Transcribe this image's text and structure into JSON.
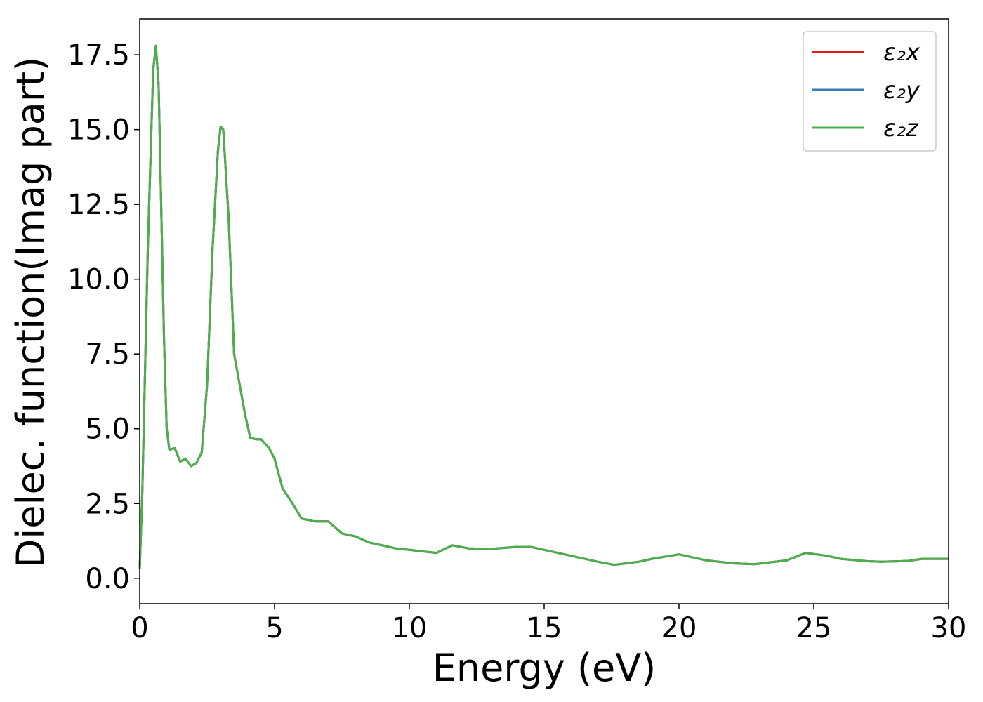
{
  "chart_data": {
    "type": "line",
    "xlabel": "Energy (eV)",
    "ylabel": "Dielec. function(Imag part)",
    "x": [
      0,
      0.1,
      0.3,
      0.5,
      0.6,
      0.7,
      0.9,
      1.0,
      1.1,
      1.3,
      1.5,
      1.7,
      1.9,
      2.1,
      2.3,
      2.5,
      2.7,
      2.9,
      3.0,
      3.1,
      3.3,
      3.5,
      3.7,
      3.9,
      4.1,
      4.3,
      4.5,
      4.8,
      5.0,
      5.3,
      5.6,
      6.0,
      6.5,
      7.0,
      7.5,
      8.0,
      8.5,
      9.0,
      9.5,
      10,
      11,
      11.6,
      12.2,
      13,
      14,
      14.5,
      15,
      16,
      17,
      17.6,
      18.5,
      19,
      20,
      21,
      22,
      22.8,
      24,
      24.7,
      25.5,
      26,
      27,
      27.5,
      28.5,
      29,
      30
    ],
    "series": [
      {
        "name": "ε₂x",
        "color": "#e41a1c",
        "values": [
          0.3,
          3,
          11,
          17,
          17.8,
          16.5,
          8,
          5,
          4.3,
          4.35,
          3.9,
          4.0,
          3.75,
          3.85,
          4.2,
          6.5,
          11,
          14.3,
          15.1,
          15.0,
          12,
          7.5,
          6.5,
          5.5,
          4.7,
          4.65,
          4.65,
          4.35,
          4.0,
          3.0,
          2.6,
          2.0,
          1.9,
          1.9,
          1.5,
          1.4,
          1.2,
          1.1,
          1.0,
          0.95,
          0.85,
          1.1,
          1.0,
          0.98,
          1.05,
          1.05,
          0.95,
          0.75,
          0.55,
          0.45,
          0.55,
          0.65,
          0.8,
          0.6,
          0.5,
          0.47,
          0.6,
          0.85,
          0.75,
          0.65,
          0.57,
          0.55,
          0.58,
          0.65,
          0.65
        ]
      },
      {
        "name": "ε₂y",
        "color": "#377eb8",
        "values": [
          0.3,
          3,
          11,
          17,
          17.8,
          16.5,
          8,
          5,
          4.3,
          4.35,
          3.9,
          4.0,
          3.75,
          3.85,
          4.2,
          6.5,
          11,
          14.3,
          15.1,
          15.0,
          12,
          7.5,
          6.5,
          5.5,
          4.7,
          4.65,
          4.65,
          4.35,
          4.0,
          3.0,
          2.6,
          2.0,
          1.9,
          1.9,
          1.5,
          1.4,
          1.2,
          1.1,
          1.0,
          0.95,
          0.85,
          1.1,
          1.0,
          0.98,
          1.05,
          1.05,
          0.95,
          0.75,
          0.55,
          0.45,
          0.55,
          0.65,
          0.8,
          0.6,
          0.5,
          0.47,
          0.6,
          0.85,
          0.75,
          0.65,
          0.57,
          0.55,
          0.58,
          0.65,
          0.65
        ]
      },
      {
        "name": "ε₂z",
        "color": "#4daf4a",
        "values": [
          0.3,
          3,
          11,
          17,
          17.8,
          16.5,
          8,
          5,
          4.3,
          4.35,
          3.9,
          4.0,
          3.75,
          3.85,
          4.2,
          6.5,
          11,
          14.3,
          15.1,
          15.0,
          12,
          7.5,
          6.5,
          5.5,
          4.7,
          4.65,
          4.65,
          4.35,
          4.0,
          3.0,
          2.6,
          2.0,
          1.9,
          1.9,
          1.5,
          1.4,
          1.2,
          1.1,
          1.0,
          0.95,
          0.85,
          1.1,
          1.0,
          0.98,
          1.05,
          1.05,
          0.95,
          0.75,
          0.55,
          0.45,
          0.55,
          0.65,
          0.8,
          0.6,
          0.5,
          0.47,
          0.6,
          0.85,
          0.75,
          0.65,
          0.57,
          0.55,
          0.58,
          0.65,
          0.65
        ]
      }
    ],
    "xlim": [
      0,
      30
    ],
    "xticks": [
      0,
      5,
      10,
      15,
      20,
      25,
      30
    ],
    "ylim": [
      -0.85,
      18.7
    ],
    "yticks": [
      {
        "value": 0,
        "label": "0.0"
      },
      2.5,
      {
        "value": 5,
        "label": "5.0"
      },
      7.5,
      {
        "value": 10,
        "label": "10.0"
      },
      12.5,
      {
        "value": 15,
        "label": "15.0"
      },
      17.5
    ],
    "legend": "upper right"
  }
}
